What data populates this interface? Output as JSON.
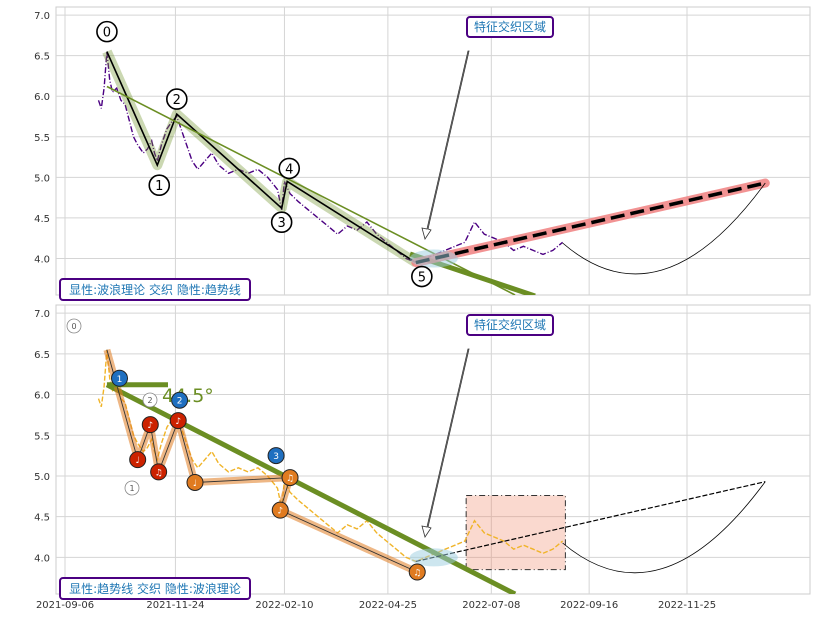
{
  "chart_data": [
    {
      "type": "line",
      "panel": "top",
      "ylim": [
        3.55,
        7.1
      ],
      "yticks": [
        "4.0",
        "4.5",
        "5.0",
        "5.5",
        "6.0",
        "6.5",
        "7.0"
      ],
      "grid": true,
      "series": [
        {
          "name": "price",
          "color": "#4b0082",
          "points": [
            [
              "2021-09-30",
              5.95
            ],
            [
              "2021-10-02",
              5.85
            ],
            [
              "2021-10-04",
              6.1
            ],
            [
              "2021-10-06",
              6.55
            ],
            [
              "2021-10-08",
              6.2
            ],
            [
              "2021-10-10",
              6.05
            ],
            [
              "2021-10-13",
              6.1
            ],
            [
              "2021-10-16",
              5.95
            ],
            [
              "2021-10-19",
              5.9
            ],
            [
              "2021-10-22",
              5.7
            ],
            [
              "2021-10-25",
              5.5
            ],
            [
              "2021-10-28",
              5.4
            ],
            [
              "2021-11-01",
              5.3
            ],
            [
              "2021-11-04",
              5.35
            ],
            [
              "2021-11-07",
              5.45
            ],
            [
              "2021-11-09",
              5.3
            ],
            [
              "2021-11-11",
              5.2
            ],
            [
              "2021-11-14",
              5.4
            ],
            [
              "2021-11-18",
              5.6
            ],
            [
              "2021-11-22",
              5.7
            ],
            [
              "2021-11-25",
              5.75
            ],
            [
              "2021-11-28",
              5.6
            ],
            [
              "2021-12-02",
              5.4
            ],
            [
              "2021-12-06",
              5.2
            ],
            [
              "2021-12-10",
              5.1
            ],
            [
              "2021-12-15",
              5.2
            ],
            [
              "2021-12-20",
              5.3
            ],
            [
              "2021-12-25",
              5.15
            ],
            [
              "2022-01-01",
              5.05
            ],
            [
              "2022-01-08",
              5.1
            ],
            [
              "2022-01-15",
              5.05
            ],
            [
              "2022-01-22",
              5.1
            ],
            [
              "2022-01-29",
              5.0
            ],
            [
              "2022-02-05",
              4.85
            ],
            [
              "2022-02-08",
              4.6
            ],
            [
              "2022-02-10",
              4.95
            ],
            [
              "2022-02-14",
              4.8
            ],
            [
              "2022-02-20",
              4.7
            ],
            [
              "2022-02-27",
              4.6
            ],
            [
              "2022-03-06",
              4.5
            ],
            [
              "2022-03-13",
              4.4
            ],
            [
              "2022-03-20",
              4.3
            ],
            [
              "2022-03-27",
              4.4
            ],
            [
              "2022-04-03",
              4.35
            ],
            [
              "2022-04-10",
              4.45
            ],
            [
              "2022-04-17",
              4.3
            ],
            [
              "2022-04-24",
              4.2
            ],
            [
              "2022-05-01",
              4.1
            ],
            [
              "2022-05-08",
              4.0
            ],
            [
              "2022-05-15",
              3.95
            ],
            [
              "2022-05-22",
              4.0
            ],
            [
              "2022-05-29",
              4.05
            ],
            [
              "2022-06-05",
              4.1
            ],
            [
              "2022-06-12",
              4.15
            ],
            [
              "2022-06-19",
              4.2
            ],
            [
              "2022-06-26",
              4.45
            ],
            [
              "2022-07-03",
              4.3
            ],
            [
              "2022-07-10",
              4.25
            ],
            [
              "2022-07-17",
              4.2
            ],
            [
              "2022-07-24",
              4.1
            ],
            [
              "2022-07-31",
              4.15
            ],
            [
              "2022-08-07",
              4.1
            ],
            [
              "2022-08-14",
              4.05
            ],
            [
              "2022-08-21",
              4.1
            ],
            [
              "2022-08-28",
              4.2
            ]
          ]
        }
      ],
      "wave": {
        "labels": [
          "0",
          "1",
          "2",
          "3",
          "4",
          "5"
        ],
        "points": [
          [
            "2021-10-06",
            6.55
          ],
          [
            "2021-11-11",
            5.15
          ],
          [
            "2021-11-25",
            5.78
          ],
          [
            "2022-02-08",
            4.62
          ],
          [
            "2022-02-12",
            4.95
          ],
          [
            "2022-05-15",
            3.95
          ]
        ],
        "color": "#000000",
        "highlight": "#6b8e23"
      },
      "trendline": {
        "from": [
          "2021-10-06",
          6.12
        ],
        "to": [
          "2022-07-25",
          3.55
        ],
        "color": "#6b8e23"
      },
      "projection": {
        "from": [
          "2022-05-15",
          3.95
        ],
        "to": [
          "2023-01-20",
          4.93
        ],
        "color": "#000000",
        "highlight": "#f08080"
      },
      "feature_label": "特征交织区域",
      "legend_text": "显性:波浪理论 交织 隐性:趋势线"
    },
    {
      "type": "line",
      "panel": "bottom",
      "ylim": [
        3.55,
        7.1
      ],
      "yticks": [
        "4.0",
        "4.5",
        "5.0",
        "5.5",
        "6.0",
        "6.5",
        "7.0"
      ],
      "xticks": [
        "2021-09-06",
        "2021-11-24",
        "2022-02-10",
        "2022-04-25",
        "2022-07-08",
        "2022-09-16",
        "2022-11-25"
      ],
      "grid": true,
      "series": [
        {
          "name": "price",
          "color": "#f0b429",
          "points": [
            [
              "2021-09-30",
              5.95
            ],
            [
              "2021-10-02",
              5.85
            ],
            [
              "2021-10-04",
              6.1
            ],
            [
              "2021-10-06",
              6.55
            ],
            [
              "2021-10-08",
              6.2
            ],
            [
              "2021-10-10",
              6.05
            ],
            [
              "2021-10-13",
              6.1
            ],
            [
              "2021-10-16",
              5.95
            ],
            [
              "2021-10-19",
              5.9
            ],
            [
              "2021-10-22",
              5.7
            ],
            [
              "2021-10-25",
              5.5
            ],
            [
              "2021-10-28",
              5.4
            ],
            [
              "2021-11-01",
              5.3
            ],
            [
              "2021-11-04",
              5.35
            ],
            [
              "2021-11-07",
              5.45
            ],
            [
              "2021-11-09",
              5.3
            ],
            [
              "2021-11-11",
              5.2
            ],
            [
              "2021-11-14",
              5.4
            ],
            [
              "2021-11-18",
              5.6
            ],
            [
              "2021-11-22",
              5.7
            ],
            [
              "2021-11-25",
              5.75
            ],
            [
              "2021-11-28",
              5.6
            ],
            [
              "2021-12-02",
              5.4
            ],
            [
              "2021-12-06",
              5.2
            ],
            [
              "2021-12-10",
              5.1
            ],
            [
              "2021-12-15",
              5.2
            ],
            [
              "2021-12-20",
              5.3
            ],
            [
              "2021-12-25",
              5.15
            ],
            [
              "2022-01-01",
              5.05
            ],
            [
              "2022-01-08",
              5.1
            ],
            [
              "2022-01-15",
              5.05
            ],
            [
              "2022-01-22",
              5.1
            ],
            [
              "2022-01-29",
              5.0
            ],
            [
              "2022-02-05",
              4.85
            ],
            [
              "2022-02-08",
              4.6
            ],
            [
              "2022-02-10",
              4.95
            ],
            [
              "2022-02-14",
              4.8
            ],
            [
              "2022-02-20",
              4.7
            ],
            [
              "2022-02-27",
              4.6
            ],
            [
              "2022-03-06",
              4.5
            ],
            [
              "2022-03-13",
              4.4
            ],
            [
              "2022-03-20",
              4.3
            ],
            [
              "2022-03-27",
              4.4
            ],
            [
              "2022-04-03",
              4.35
            ],
            [
              "2022-04-10",
              4.45
            ],
            [
              "2022-04-17",
              4.3
            ],
            [
              "2022-04-24",
              4.2
            ],
            [
              "2022-05-01",
              4.1
            ],
            [
              "2022-05-08",
              4.0
            ],
            [
              "2022-05-15",
              3.95
            ],
            [
              "2022-05-22",
              4.0
            ],
            [
              "2022-05-29",
              4.05
            ],
            [
              "2022-06-05",
              4.1
            ],
            [
              "2022-06-12",
              4.15
            ],
            [
              "2022-06-19",
              4.2
            ],
            [
              "2022-06-26",
              4.45
            ],
            [
              "2022-07-03",
              4.3
            ],
            [
              "2022-07-10",
              4.25
            ],
            [
              "2022-07-17",
              4.2
            ],
            [
              "2022-07-24",
              4.1
            ],
            [
              "2022-07-31",
              4.15
            ],
            [
              "2022-08-07",
              4.1
            ],
            [
              "2022-08-14",
              4.05
            ],
            [
              "2022-08-21",
              4.1
            ],
            [
              "2022-08-28",
              4.2
            ]
          ]
        }
      ],
      "trendline": {
        "from": [
          "2021-10-06",
          6.12
        ],
        "to": [
          "2022-07-25",
          3.55
        ],
        "color": "#6b8e23",
        "angle_label": "44.5°"
      },
      "wave_ghost_labels": [
        "0",
        "1",
        "2"
      ],
      "markers": [
        {
          "label": "1",
          "color": "#1f6fc0",
          "date": "2021-10-15",
          "value": 6.2
        },
        {
          "label": "2",
          "color": "#1f6fc0",
          "date": "2021-11-27",
          "value": 5.93
        },
        {
          "label": "3",
          "color": "#1f6fc0",
          "date": "2022-02-04",
          "value": 5.25
        },
        {
          "label": "♩",
          "color": "#cc2200",
          "date": "2021-10-28",
          "value": 5.2
        },
        {
          "label": "♪",
          "color": "#cc2200",
          "date": "2021-11-06",
          "value": 5.63
        },
        {
          "label": "♫",
          "color": "#cc2200",
          "date": "2021-11-12",
          "value": 5.05
        },
        {
          "label": "♪",
          "color": "#cc2200",
          "date": "2021-11-26",
          "value": 5.68
        },
        {
          "label": "♩",
          "color": "#e07b20",
          "date": "2021-12-08",
          "value": 4.92
        },
        {
          "label": "♫",
          "color": "#e07b20",
          "date": "2022-02-14",
          "value": 4.98
        },
        {
          "label": "♪",
          "color": "#e07b20",
          "date": "2022-02-07",
          "value": 4.58
        },
        {
          "label": "♫",
          "color": "#e07b20",
          "date": "2022-05-16",
          "value": 3.82
        }
      ],
      "projection": {
        "from": [
          "2022-05-15",
          3.95
        ],
        "to": [
          "2023-01-20",
          4.93
        ],
        "color": "#000000"
      },
      "box": {
        "from": [
          "2022-06-20",
          3.85
        ],
        "to": [
          "2022-08-30",
          4.76
        ],
        "color": "#f08060"
      },
      "feature_label": "特征交织区域",
      "legend_text": "显性:趋势线 交织 隐性:波浪理论"
    }
  ]
}
